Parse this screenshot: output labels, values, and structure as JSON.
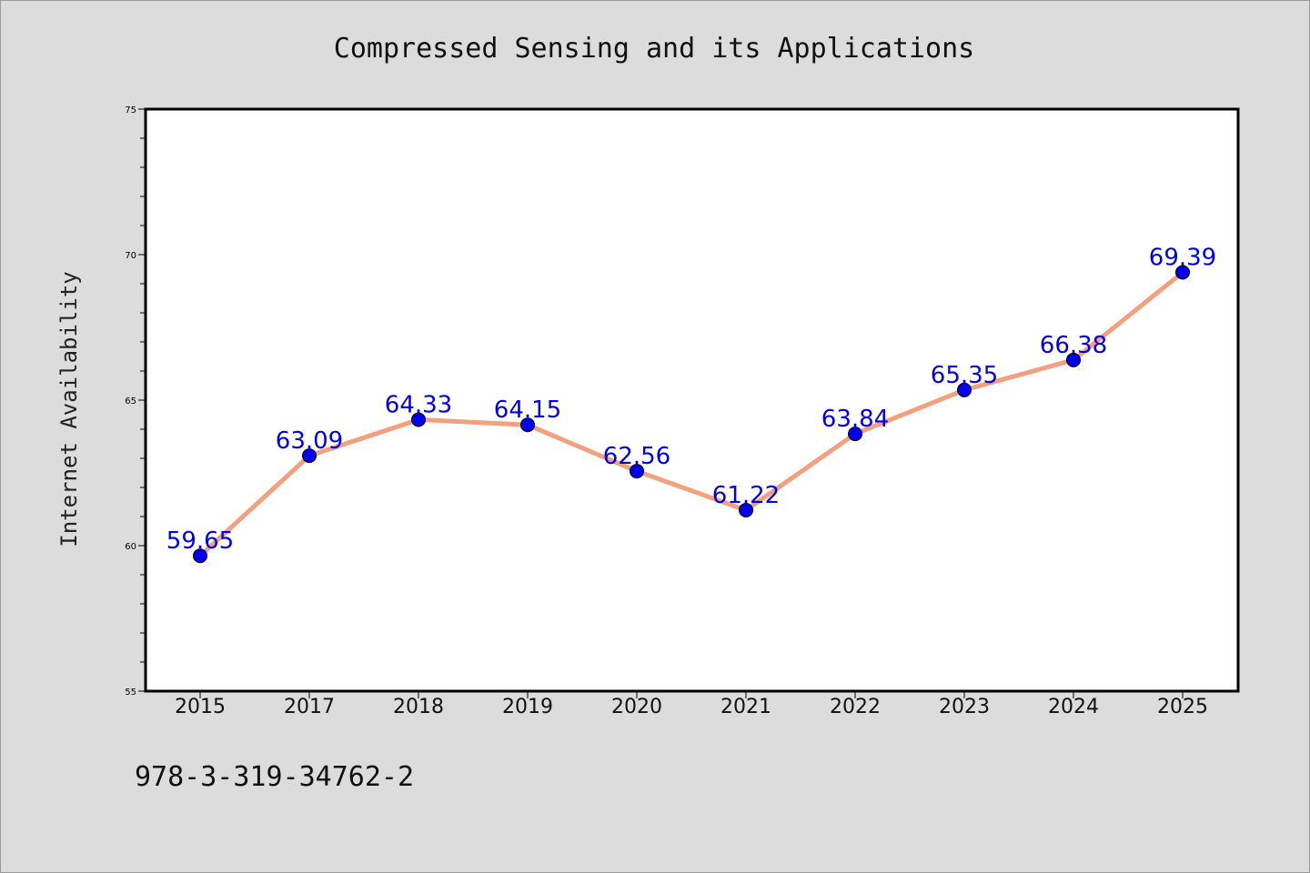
{
  "chart_data": {
    "type": "line",
    "title": "Compressed Sensing and its Applications",
    "xlabel": "",
    "ylabel": "Internet Availability",
    "categories": [
      "2015",
      "2017",
      "2018",
      "2019",
      "2020",
      "2021",
      "2022",
      "2023",
      "2024",
      "2025"
    ],
    "series": [
      {
        "values": [
          59.65,
          63.09,
          64.33,
          64.15,
          62.56,
          61.22,
          63.84,
          65.35,
          66.38,
          69.39
        ],
        "data_labels": [
          "59.65",
          "63.09",
          "64.33",
          "64.15",
          "62.56",
          "61.22",
          "63.84",
          "65.35",
          "66.38",
          "69.39"
        ],
        "line_color": "#f4a07e",
        "marker_color": "#0000ee"
      }
    ],
    "ylim": [
      55,
      75
    ],
    "yticks": [
      "55",
      "60",
      "65",
      "70",
      "75"
    ],
    "grid": false,
    "legend": "none"
  },
  "footer": {
    "isbn": "978-3-319-34762-2"
  },
  "colors": {
    "background": "#dcdcdc",
    "plot_area": "#ffffff",
    "line": "#f4a07e",
    "marker": "#0000ee",
    "data_label": "#0000ee"
  }
}
